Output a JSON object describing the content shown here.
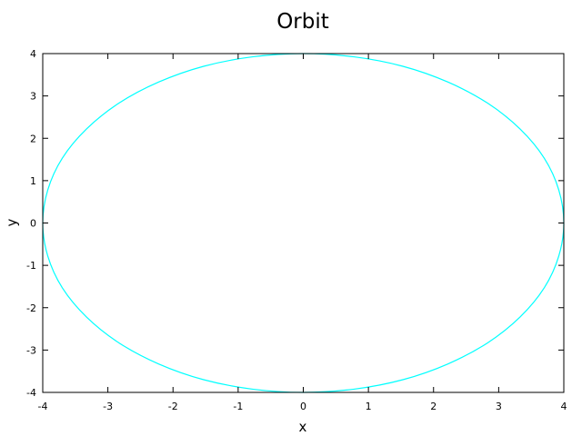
{
  "chart_data": {
    "type": "line",
    "title": "Orbit",
    "xlabel": "x",
    "ylabel": "y",
    "xlim": [
      -4,
      4
    ],
    "ylim": [
      -4,
      4
    ],
    "xticks": [
      "-4",
      "-3",
      "-2",
      "-1",
      "0",
      "1",
      "2",
      "3",
      "4"
    ],
    "yticks": [
      "-4",
      "-3",
      "-2",
      "-1",
      "0",
      "1",
      "2",
      "3",
      "4"
    ],
    "grid": false,
    "series": [
      {
        "color": "#00ffff",
        "x": [
          4,
          3.7,
          2.83,
          1.53,
          0,
          -1.53,
          -2.83,
          -3.7,
          -4,
          -3.7,
          -2.83,
          -1.53,
          0,
          1.53,
          2.83,
          3.7,
          4
        ],
        "y": [
          0,
          1.53,
          2.83,
          3.7,
          4,
          3.7,
          2.83,
          1.53,
          0,
          -1.53,
          -2.83,
          -3.7,
          -4,
          -3.7,
          -2.83,
          -1.53,
          0
        ]
      }
    ]
  }
}
